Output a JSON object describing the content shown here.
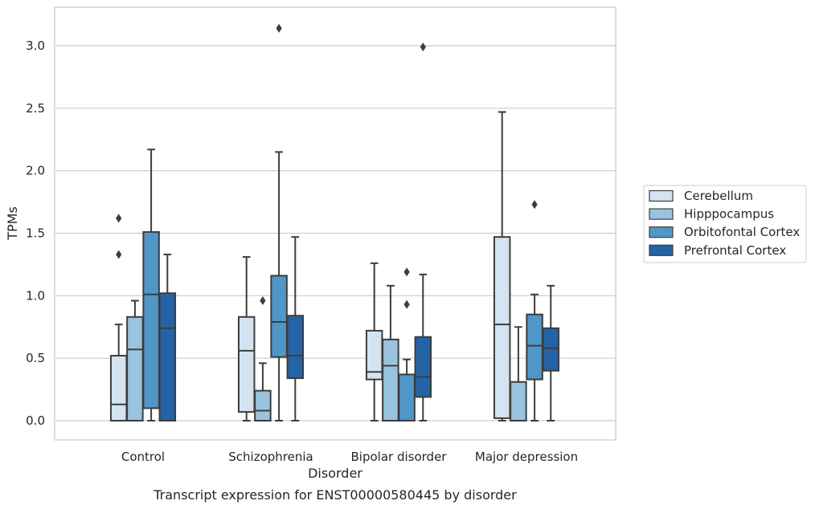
{
  "chart_data": {
    "type": "boxplot",
    "caption": "Transcript expression for ENST00000580445 by disorder",
    "xlabel": "Disorder",
    "ylabel": "TPMs",
    "ylim": [
      -0.15,
      3.33
    ],
    "yticks": [
      0.0,
      0.5,
      1.0,
      1.5,
      2.0,
      2.5,
      3.0
    ],
    "ytick_labels": [
      "0.0",
      "0.5",
      "1.0",
      "1.5",
      "2.0",
      "2.5",
      "3.0"
    ],
    "grid": "horizontal",
    "legend_position": "right",
    "categories": [
      "Control",
      "Schizophrenia",
      "Bipolar disorder",
      "Major depression"
    ],
    "series": [
      {
        "name": "Cerebellum",
        "color": "#d3e3f2",
        "boxes": [
          {
            "whislo": 0.0,
            "q1": 0.0,
            "med": 0.13,
            "q3": 0.52,
            "whishi": 0.77,
            "fliers": [
              1.33,
              1.62
            ]
          },
          {
            "whislo": 0.0,
            "q1": 0.07,
            "med": 0.56,
            "q3": 0.83,
            "whishi": 1.31,
            "fliers": []
          },
          {
            "whislo": 0.0,
            "q1": 0.33,
            "med": 0.39,
            "q3": 0.72,
            "whishi": 1.26,
            "fliers": []
          },
          {
            "whislo": 0.0,
            "q1": 0.02,
            "med": 0.77,
            "q3": 1.47,
            "whishi": 2.47,
            "fliers": []
          }
        ]
      },
      {
        "name": "Hipppocampus",
        "color": "#9ac4de",
        "boxes": [
          {
            "whislo": 0.0,
            "q1": 0.0,
            "med": 0.57,
            "q3": 0.83,
            "whishi": 0.96,
            "fliers": []
          },
          {
            "whislo": 0.0,
            "q1": 0.0,
            "med": 0.08,
            "q3": 0.24,
            "whishi": 0.46,
            "fliers": [
              0.96
            ]
          },
          {
            "whislo": 0.0,
            "q1": 0.0,
            "med": 0.44,
            "q3": 0.65,
            "whishi": 1.08,
            "fliers": []
          },
          {
            "whislo": 0.0,
            "q1": 0.0,
            "med": 0.0,
            "q3": 0.31,
            "whishi": 0.75,
            "fliers": []
          }
        ]
      },
      {
        "name": "Orbitofontal Cortex",
        "color": "#5096c7",
        "boxes": [
          {
            "whislo": 0.0,
            "q1": 0.1,
            "med": 1.01,
            "q3": 1.51,
            "whishi": 2.17,
            "fliers": []
          },
          {
            "whislo": 0.0,
            "q1": 0.51,
            "med": 0.79,
            "q3": 1.16,
            "whishi": 2.15,
            "fliers": [
              3.14
            ]
          },
          {
            "whislo": 0.0,
            "q1": 0.0,
            "med": 0.0,
            "q3": 0.37,
            "whishi": 0.49,
            "fliers": [
              0.93,
              1.19
            ]
          },
          {
            "whislo": 0.0,
            "q1": 0.33,
            "med": 0.6,
            "q3": 0.85,
            "whishi": 1.01,
            "fliers": [
              1.73
            ]
          }
        ]
      },
      {
        "name": "Prefrontal Cortex",
        "color": "#2463a6",
        "boxes": [
          {
            "whislo": 0.0,
            "q1": 0.0,
            "med": 0.74,
            "q3": 1.02,
            "whishi": 1.33,
            "fliers": []
          },
          {
            "whislo": 0.0,
            "q1": 0.34,
            "med": 0.52,
            "q3": 0.84,
            "whishi": 1.47,
            "fliers": []
          },
          {
            "whislo": 0.0,
            "q1": 0.19,
            "med": 0.35,
            "q3": 0.67,
            "whishi": 1.17,
            "fliers": [
              2.99
            ]
          },
          {
            "whislo": 0.0,
            "q1": 0.4,
            "med": 0.58,
            "q3": 0.74,
            "whishi": 1.08,
            "fliers": []
          }
        ]
      }
    ]
  }
}
